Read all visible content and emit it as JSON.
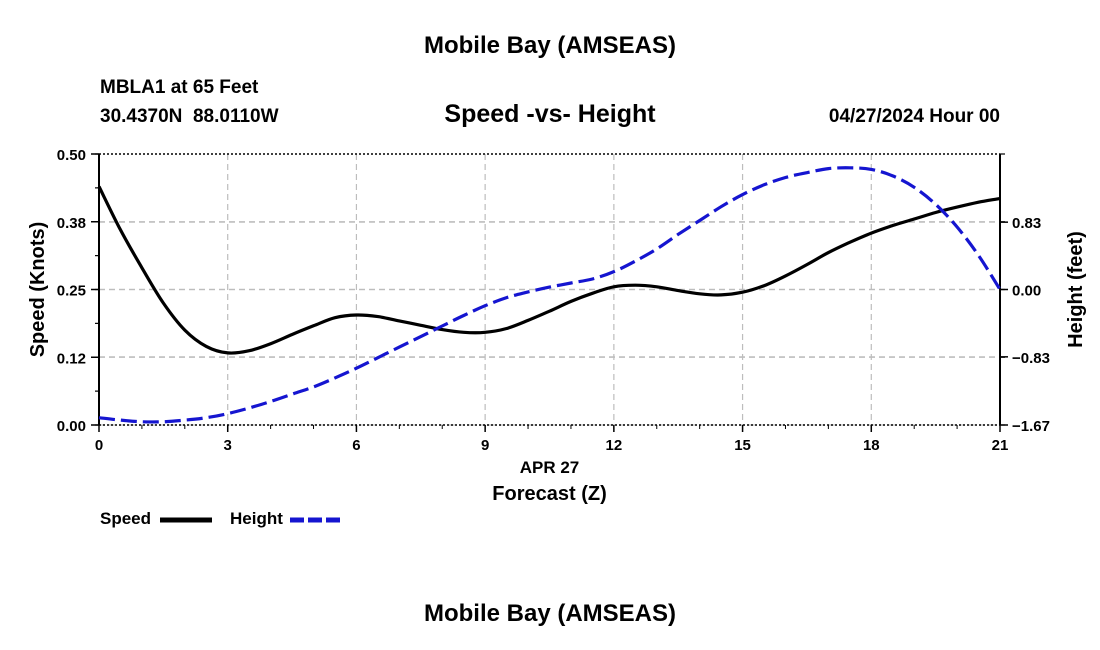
{
  "figure": {
    "top_title": "Mobile Bay (AMSEAS)",
    "bottom_title": "Mobile Bay (AMSEAS)",
    "station_line": "MBLA1 at 65 Feet",
    "coords_line": "30.4370N  88.0110W",
    "subtitle": "Speed -vs- Height",
    "date_line": "04/27/2024 Hour 00"
  },
  "legend": {
    "speed_label": "Speed",
    "height_label": "Height"
  },
  "colors": {
    "speed": "#000000",
    "height": "#1515d0",
    "grid": "#bdbdbd"
  },
  "chart_data": {
    "type": "line",
    "title": "Speed -vs- Height",
    "xlabel": "Forecast (Z)",
    "xsublabel": "APR 27",
    "ylabel": "Speed (Knots)",
    "y2label": "Height (feet)",
    "xlim": [
      0,
      21
    ],
    "ylim": [
      0,
      0.5
    ],
    "y2lim": [
      -1.67,
      1.67
    ],
    "x_ticks": [
      0,
      3,
      6,
      9,
      12,
      15,
      18,
      21
    ],
    "x_tick_labels": [
      "0",
      "3",
      "6",
      "9",
      "12",
      "15",
      "18",
      "21"
    ],
    "y_ticks": [
      0,
      0.125,
      0.25,
      0.375,
      0.5
    ],
    "y_tick_labels": [
      "0.00",
      "0.12",
      "0.25",
      "0.38",
      "0.50"
    ],
    "y2_ticks": [
      -1.67,
      -0.83,
      0,
      0.83
    ],
    "y2_tick_labels": [
      "−1.67",
      "−0.83",
      "0.00",
      "0.83"
    ],
    "grid": true,
    "series": [
      {
        "name": "Speed",
        "axis": "left",
        "style": "solid",
        "x": [
          0,
          0.5,
          1,
          1.5,
          2,
          2.5,
          3,
          3.5,
          4,
          4.5,
          5,
          5.5,
          6,
          6.5,
          7,
          7.5,
          8,
          8.5,
          9,
          9.5,
          10,
          10.5,
          11,
          11.5,
          12,
          12.5,
          13,
          13.5,
          14,
          14.5,
          15,
          15.5,
          16,
          16.5,
          17,
          17.5,
          18,
          18.5,
          19,
          19.5,
          20,
          20.5,
          21
        ],
        "values": [
          0.44,
          0.36,
          0.29,
          0.225,
          0.175,
          0.145,
          0.133,
          0.137,
          0.15,
          0.167,
          0.183,
          0.198,
          0.203,
          0.2,
          0.192,
          0.184,
          0.176,
          0.171,
          0.171,
          0.178,
          0.193,
          0.21,
          0.228,
          0.243,
          0.255,
          0.258,
          0.255,
          0.248,
          0.242,
          0.24,
          0.245,
          0.257,
          0.275,
          0.296,
          0.318,
          0.337,
          0.354,
          0.368,
          0.38,
          0.392,
          0.402,
          0.411,
          0.418
        ]
      },
      {
        "name": "Height",
        "axis": "right",
        "style": "dashed",
        "x": [
          0,
          0.5,
          1,
          1.5,
          2,
          2.5,
          3,
          3.5,
          4,
          4.5,
          5,
          5.5,
          6,
          6.5,
          7,
          7.5,
          8,
          8.5,
          9,
          9.5,
          10,
          10.5,
          11,
          11.5,
          12,
          12.5,
          13,
          13.5,
          14,
          14.5,
          15,
          15.5,
          16,
          16.5,
          17,
          17.5,
          18,
          18.5,
          19,
          19.5,
          20,
          20.5,
          21
        ],
        "values": [
          -1.58,
          -1.61,
          -1.63,
          -1.63,
          -1.61,
          -1.58,
          -1.53,
          -1.46,
          -1.38,
          -1.29,
          -1.2,
          -1.09,
          -0.97,
          -0.84,
          -0.71,
          -0.58,
          -0.45,
          -0.32,
          -0.2,
          -0.1,
          -0.03,
          0.03,
          0.08,
          0.13,
          0.22,
          0.35,
          0.5,
          0.68,
          0.85,
          1.02,
          1.17,
          1.29,
          1.38,
          1.44,
          1.49,
          1.5,
          1.48,
          1.4,
          1.26,
          1.05,
          0.77,
          0.42,
          0.0
        ]
      }
    ]
  }
}
